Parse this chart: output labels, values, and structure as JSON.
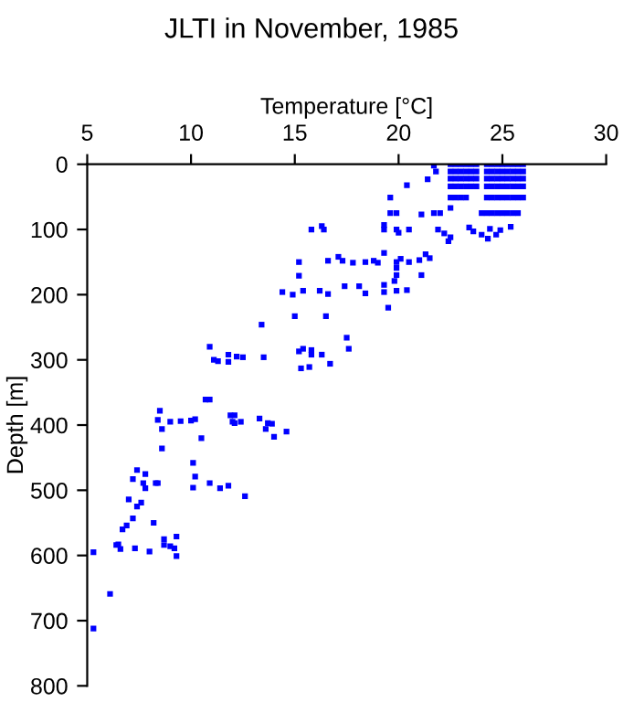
{
  "chart_data": {
    "type": "scatter",
    "title": "JLTI in November, 1985",
    "xlabel": "Temperature [°C]",
    "ylabel": "Depth [m]",
    "xlim": [
      5,
      30
    ],
    "xticks": [
      5,
      10,
      15,
      20,
      25,
      30
    ],
    "ylim": [
      800,
      0
    ],
    "yticks": [
      0,
      100,
      200,
      300,
      400,
      500,
      600,
      700,
      800
    ],
    "grid": false,
    "marker": "square",
    "series": [
      {
        "color": "#0000ff",
        "x": [
          22.5,
          22.75,
          23.0,
          23.25,
          23.5,
          23.75,
          24.25,
          24.5,
          24.75,
          25.0,
          25.25,
          25.5,
          25.75,
          26.0,
          22.5,
          22.75,
          23.0,
          23.25,
          23.5,
          23.75,
          24.25,
          24.5,
          24.75,
          25.0,
          25.25,
          25.5,
          25.75,
          26.0,
          22.5,
          22.75,
          23.0,
          23.25,
          23.5,
          23.75,
          24.25,
          24.5,
          24.75,
          25.0,
          25.25,
          25.5,
          25.75,
          26.0,
          22.5,
          22.75,
          23.0,
          23.25,
          23.5,
          23.75,
          24.25,
          24.5,
          24.75,
          25.0,
          25.25,
          25.5,
          25.75,
          26.0,
          22.5,
          22.75,
          23.0,
          23.25,
          24.25,
          24.5,
          24.75,
          25.0,
          25.25,
          25.5,
          25.75,
          26.0,
          24.0,
          24.25,
          24.5,
          24.75,
          25.0,
          25.25,
          25.5,
          25.75,
          21.7,
          21.8,
          21.4,
          20.4,
          19.6,
          19.6,
          19.9,
          21.1,
          21.7,
          22.0,
          22.5,
          16.3,
          16.4,
          15.8,
          19.3,
          19.3,
          19.9,
          20.5,
          20.0,
          21.9,
          22.2,
          22.5,
          22.4,
          23.4,
          23.6,
          24.0,
          24.4,
          24.3,
          24.7,
          24.9,
          25.4,
          15.2,
          16.6,
          17.1,
          17.3,
          17.8,
          18.4,
          18.8,
          19.0,
          19.3,
          19.9,
          20.1,
          20.5,
          21.0,
          21.3,
          21.5,
          15.2,
          19.9,
          19.9,
          19.8,
          21.1,
          14.4,
          14.9,
          15.4,
          16.2,
          16.6,
          17.4,
          18.1,
          18.4,
          19.3,
          19.9,
          20.4,
          19.3,
          19.5,
          15.0,
          16.5,
          13.4,
          17.5,
          17.6,
          10.9,
          11.1,
          11.3,
          11.8,
          12.2,
          12.5,
          11.8,
          13.5,
          15.2,
          15.4,
          15.8,
          15.8,
          15.3,
          15.7,
          16.3,
          16.7,
          10.7,
          10.9,
          8.5,
          8.4,
          8.6,
          9.0,
          9.5,
          10.0,
          10.2,
          10.5,
          11.9,
          12.1,
          12.0,
          12.4,
          12.1,
          13.3,
          13.6,
          13.7,
          13.9,
          14.0,
          14.6,
          8.6,
          10.1,
          10.2,
          10.1,
          10.9,
          11.4,
          11.8,
          12.6,
          7.4,
          7.8,
          7.2,
          7.7,
          7.8,
          8.3,
          8.4,
          7.0,
          7.4,
          7.6,
          7.2,
          8.2,
          6.9,
          6.7,
          6.4,
          6.5,
          6.6,
          7.3,
          5.3,
          8.0,
          8.7,
          8.7,
          9.0,
          9.2,
          9.3,
          9.3,
          6.1,
          5.3
        ],
        "values": [
          0,
          0,
          0,
          0,
          0,
          0,
          0,
          0,
          0,
          0,
          0,
          0,
          0,
          0,
          11,
          11,
          11,
          11,
          11,
          11,
          11,
          11,
          11,
          11,
          11,
          11,
          11,
          11,
          22,
          22,
          22,
          22,
          22,
          22,
          22,
          22,
          22,
          22,
          22,
          22,
          22,
          22,
          34,
          34,
          34,
          34,
          34,
          34,
          34,
          34,
          34,
          34,
          34,
          34,
          34,
          34,
          51,
          51,
          51,
          51,
          51,
          51,
          51,
          51,
          51,
          51,
          51,
          51,
          75,
          75,
          75,
          75,
          75,
          75,
          75,
          75,
          2,
          11,
          23,
          32,
          51,
          75,
          75,
          77,
          75,
          75,
          67,
          95,
          100,
          100,
          93,
          100,
          100,
          100,
          105,
          100,
          106,
          112,
          118,
          97,
          103,
          108,
          99,
          114,
          108,
          101,
          96,
          150,
          148,
          142,
          148,
          151,
          150,
          148,
          151,
          136,
          150,
          145,
          150,
          147,
          138,
          144,
          171,
          159,
          170,
          179,
          170,
          196,
          200,
          194,
          194,
          199,
          187,
          187,
          198,
          185,
          194,
          193,
          196,
          220,
          233,
          233,
          246,
          266,
          283,
          280,
          300,
          302,
          292,
          295,
          296,
          303,
          296,
          287,
          283,
          285,
          292,
          313,
          311,
          292,
          306,
          361,
          361,
          378,
          392,
          406,
          395,
          394,
          393,
          391,
          420,
          385,
          385,
          395,
          395,
          397,
          390,
          406,
          397,
          398,
          418,
          410,
          436,
          458,
          479,
          496,
          489,
          497,
          493,
          509,
          469,
          475,
          483,
          489,
          497,
          489,
          489,
          514,
          525,
          519,
          543,
          550,
          554,
          560,
          584,
          583,
          590,
          589,
          595,
          594,
          575,
          584,
          586,
          589,
          571,
          601,
          659,
          712
        ]
      }
    ]
  }
}
